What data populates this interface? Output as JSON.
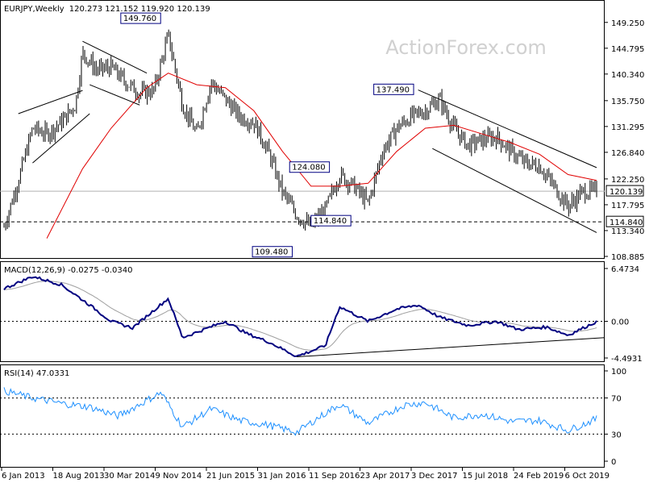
{
  "header": {
    "symbol": "EURJPY,Weekly",
    "ohlc": "120.273 121.152 119.920 120.139"
  },
  "watermark": "ActionForex.com",
  "colors": {
    "candles": "#000000",
    "sma": "#e00000",
    "macd": "#000080",
    "signal": "#a0a0a0",
    "rsi": "#1e90ff",
    "label_border": "#000080",
    "watermark": "#d0d0d0"
  },
  "x_axis": {
    "labels": [
      "6 Jan 2013",
      "18 Aug 2013",
      "30 Mar 2014",
      "9 Nov 2014",
      "21 Jun 2015",
      "31 Jan 2016",
      "11 Sep 2016",
      "23 Apr 2017",
      "3 Dec 2017",
      "15 Jul 2018",
      "24 Feb 2019",
      "6 Oct 2019"
    ]
  },
  "chart_data": [
    {
      "type": "candlestick",
      "title": "EURJPY,Weekly",
      "ylim": [
        108.885,
        152.0
      ],
      "y_ticks": [
        "149.250",
        "144.795",
        "140.340",
        "135.750",
        "131.295",
        "126.840",
        "122.250",
        "117.795",
        "113.340",
        "108.885"
      ],
      "last_price": "120.139",
      "support_level": "114.840",
      "x_range": [
        "6 Jan 2013",
        "Dec 2019"
      ],
      "annotations": [
        "149.760",
        "137.490",
        "124.080",
        "114.840",
        "109.480"
      ],
      "close_path": [
        [
          "2013-01",
          114
        ],
        [
          "2013-03",
          122
        ],
        [
          "2013-05",
          131
        ],
        [
          "2013-07",
          130
        ],
        [
          "2013-09",
          132
        ],
        [
          "2013-11",
          135
        ],
        [
          "2013-12",
          144
        ],
        [
          "2014-02",
          141
        ],
        [
          "2014-04",
          141.5
        ],
        [
          "2014-06",
          139
        ],
        [
          "2014-08",
          137
        ],
        [
          "2014-10",
          137.5
        ],
        [
          "2014-12",
          147
        ],
        [
          "2015-02",
          135
        ],
        [
          "2015-04",
          130
        ],
        [
          "2015-06",
          139
        ],
        [
          "2015-08",
          136
        ],
        [
          "2015-10",
          133
        ],
        [
          "2015-12",
          132
        ],
        [
          "2016-02",
          127
        ],
        [
          "2016-04",
          120
        ],
        [
          "2016-06",
          116
        ],
        [
          "2016-08",
          114
        ],
        [
          "2016-10",
          117
        ],
        [
          "2016-12",
          123
        ],
        [
          "2017-02",
          121
        ],
        [
          "2017-04",
          118
        ],
        [
          "2017-06",
          127
        ],
        [
          "2017-08",
          131
        ],
        [
          "2017-10",
          133
        ],
        [
          "2017-12",
          134
        ],
        [
          "2018-02",
          136
        ],
        [
          "2018-04",
          131
        ],
        [
          "2018-06",
          128
        ],
        [
          "2018-08",
          129
        ],
        [
          "2018-10",
          129.5
        ],
        [
          "2018-12",
          127
        ],
        [
          "2019-02",
          125
        ],
        [
          "2019-04",
          124.5
        ],
        [
          "2019-06",
          121
        ],
        [
          "2019-08",
          117.5
        ],
        [
          "2019-10",
          120
        ],
        [
          "2019-12",
          120.139
        ]
      ],
      "sma_path": [
        [
          "2013-07",
          112
        ],
        [
          "2013-12",
          124
        ],
        [
          "2014-04",
          131
        ],
        [
          "2014-09",
          138
        ],
        [
          "2014-12",
          140.5
        ],
        [
          "2015-04",
          138.5
        ],
        [
          "2015-08",
          138
        ],
        [
          "2015-12",
          134
        ],
        [
          "2016-04",
          127
        ],
        [
          "2016-08",
          121
        ],
        [
          "2016-12",
          121
        ],
        [
          "2017-04",
          121.5
        ],
        [
          "2017-08",
          127
        ],
        [
          "2017-12",
          131
        ],
        [
          "2018-04",
          131.5
        ],
        [
          "2018-08",
          130
        ],
        [
          "2018-12",
          128.5
        ],
        [
          "2019-04",
          126.5
        ],
        [
          "2019-08",
          123
        ],
        [
          "2019-12",
          122
        ]
      ]
    },
    {
      "type": "line",
      "title": "MACD(12,26,9) -0.0275 -0.0340",
      "ylim": [
        -4.4931,
        6.4734
      ],
      "y_ticks": [
        "6.4734",
        "0.00",
        "-4.4931"
      ],
      "series": [
        {
          "name": "MACD",
          "values": [
            [
              "2013-01",
              4
            ],
            [
              "2013-05",
              5.5
            ],
            [
              "2013-09",
              4.5
            ],
            [
              "2014-01",
              2
            ],
            [
              "2014-04",
              0
            ],
            [
              "2014-07",
              -0.8
            ],
            [
              "2014-12",
              2.8
            ],
            [
              "2015-02",
              -2
            ],
            [
              "2015-05",
              -1
            ],
            [
              "2015-08",
              0
            ],
            [
              "2015-11",
              -1.5
            ],
            [
              "2016-02",
              -2.5
            ],
            [
              "2016-06",
              -4.3
            ],
            [
              "2016-10",
              -3
            ],
            [
              "2016-12",
              1.8
            ],
            [
              "2017-04",
              0
            ],
            [
              "2017-08",
              1.5
            ],
            [
              "2017-11",
              2
            ],
            [
              "2018-02",
              0.5
            ],
            [
              "2018-06",
              -0.5
            ],
            [
              "2018-10",
              0
            ],
            [
              "2019-01",
              -1
            ],
            [
              "2019-05",
              -0.7
            ],
            [
              "2019-08",
              -1.7
            ],
            [
              "2019-12",
              -0.03
            ]
          ]
        }
      ]
    },
    {
      "type": "line",
      "title": "RSI(14) 47.0331",
      "ylim": [
        0,
        100
      ],
      "y_ticks": [
        "100",
        "70",
        "30",
        "0"
      ],
      "series": [
        {
          "name": "RSI(14)",
          "values": [
            [
              "2013-01",
              78
            ],
            [
              "2013-05",
              70
            ],
            [
              "2013-09",
              64
            ],
            [
              "2014-01",
              60
            ],
            [
              "2014-05",
              50
            ],
            [
              "2014-11",
              76
            ],
            [
              "2015-02",
              38
            ],
            [
              "2015-06",
              58
            ],
            [
              "2015-10",
              45
            ],
            [
              "2016-02",
              40
            ],
            [
              "2016-06",
              32
            ],
            [
              "2016-09",
              48
            ],
            [
              "2016-12",
              63
            ],
            [
              "2017-04",
              42
            ],
            [
              "2017-09",
              62
            ],
            [
              "2017-12",
              65
            ],
            [
              "2018-04",
              48
            ],
            [
              "2018-08",
              52
            ],
            [
              "2018-12",
              44
            ],
            [
              "2019-04",
              45
            ],
            [
              "2019-08",
              34
            ],
            [
              "2019-12",
              47
            ]
          ]
        }
      ]
    }
  ]
}
